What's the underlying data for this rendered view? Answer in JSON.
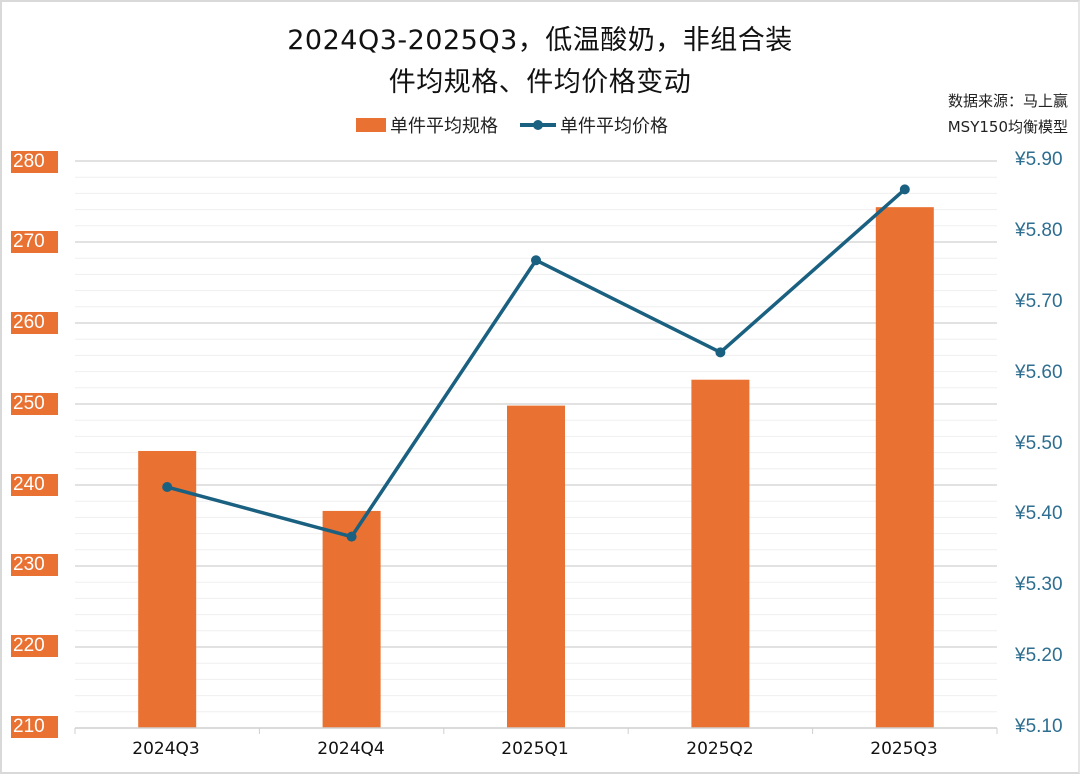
{
  "title": {
    "line1": "2024Q3-2025Q3，低温酸奶，非组合装",
    "line2": "件均规格、件均价格变动"
  },
  "source": {
    "line1": "数据来源：马上赢",
    "line2": "MSY150均衡模型"
  },
  "legend": {
    "bar_label": "单件平均规格",
    "line_label": "单件平均价格"
  },
  "colors": {
    "bar": "#E97132",
    "line": "#1A6080",
    "right_axis_text": "#2E6E90",
    "gridline": "#d9d9d9",
    "minor_gridline": "#efefef"
  },
  "axes": {
    "left_ticks": [
      "280",
      "270",
      "260",
      "250",
      "240",
      "230",
      "220",
      "210"
    ],
    "right_ticks": [
      "¥5.90",
      "¥5.80",
      "¥5.70",
      "¥5.60",
      "¥5.50",
      "¥5.40",
      "¥5.30",
      "¥5.20",
      "¥5.10"
    ],
    "x_ticks": [
      "2024Q3",
      "2024Q4",
      "2025Q1",
      "2025Q2",
      "2025Q3"
    ]
  },
  "chart_data": {
    "type": "bar",
    "combo": "bar+line (dual axis)",
    "title": "2024Q3-2025Q3，低温酸奶，非组合装 件均规格、件均价格变动",
    "categories": [
      "2024Q3",
      "2024Q4",
      "2025Q1",
      "2025Q2",
      "2025Q3"
    ],
    "series": [
      {
        "name": "单件平均规格",
        "type": "bar",
        "axis": "left",
        "values": [
          244.2,
          236.8,
          249.8,
          253.0,
          274.3
        ]
      },
      {
        "name": "单件平均价格",
        "type": "line",
        "axis": "right",
        "values": [
          5.44,
          5.37,
          5.76,
          5.63,
          5.86
        ]
      }
    ],
    "xlabel": "",
    "ylabel_left": "",
    "ylabel_right": "",
    "ylim_left": [
      210,
      280
    ],
    "ylim_right": [
      5.1,
      5.9
    ],
    "grid": true,
    "legend_position": "top",
    "annotations": [
      "数据来源：马上赢",
      "MSY150均衡模型"
    ]
  }
}
